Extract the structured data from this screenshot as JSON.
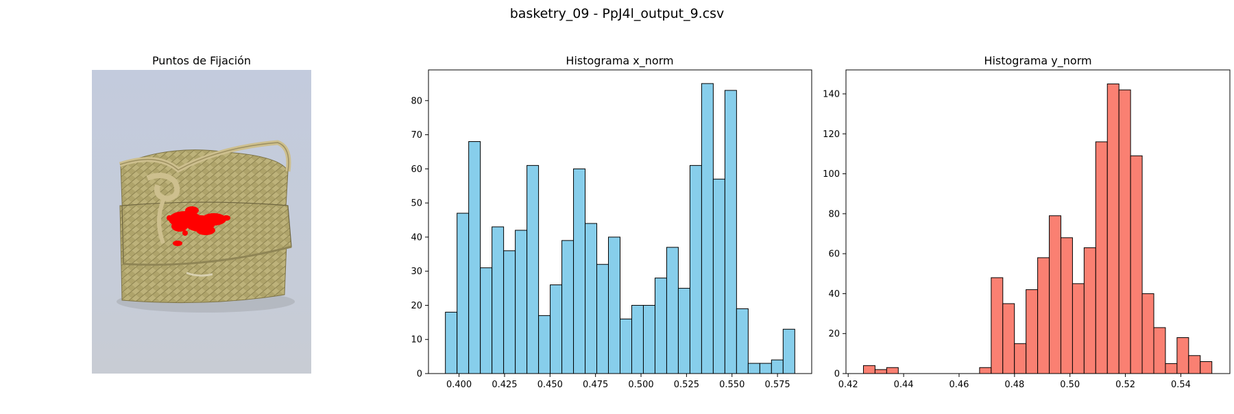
{
  "figure_title": "basketry_09 - PpJ4l_output_9.csv",
  "chart_data": [
    {
      "type": "image",
      "title": "Puntos de Fijación",
      "subject": "woven esparto basket bag with rope handle, red fixation point cluster on front flap",
      "colors": {
        "background": "#c3cbdd",
        "points": "#ff0000"
      }
    },
    {
      "type": "histogram",
      "title": "Histograma x_norm",
      "xlabel": "",
      "ylabel": "",
      "bin_start": 0.3925,
      "bin_width": 0.0064,
      "values": [
        18,
        47,
        68,
        31,
        43,
        36,
        42,
        61,
        17,
        26,
        39,
        60,
        44,
        32,
        40,
        16,
        20,
        20,
        28,
        37,
        25,
        61,
        85,
        57,
        83,
        19,
        3,
        3,
        4,
        13
      ],
      "xlim": [
        0.3832,
        0.5938
      ],
      "ylim": [
        0,
        89
      ],
      "xticks": [
        "0.400",
        "0.425",
        "0.450",
        "0.475",
        "0.500",
        "0.525",
        "0.550",
        "0.575"
      ],
      "yticks": [
        "0",
        "10",
        "20",
        "30",
        "40",
        "50",
        "60",
        "70",
        "80"
      ],
      "colors": {
        "fill": "#87ceeb",
        "edge": "#000000"
      },
      "grid": false,
      "legend": "none"
    },
    {
      "type": "histogram",
      "title": "Histograma y_norm",
      "xlabel": "",
      "ylabel": "",
      "bin_start": 0.4255,
      "bin_width": 0.00419,
      "values": [
        4,
        2,
        3,
        0,
        0,
        0,
        0,
        0,
        0,
        0,
        3,
        48,
        35,
        15,
        42,
        58,
        79,
        68,
        45,
        63,
        116,
        145,
        142,
        109,
        40,
        23,
        5,
        18,
        9,
        6
      ],
      "xlim": [
        0.4192,
        0.5577
      ],
      "ylim": [
        0,
        152
      ],
      "xticks": [
        "0.42",
        "0.44",
        "0.46",
        "0.48",
        "0.50",
        "0.52",
        "0.54"
      ],
      "yticks": [
        "0",
        "20",
        "40",
        "60",
        "80",
        "100",
        "120",
        "140"
      ],
      "colors": {
        "fill": "#fa8072",
        "edge": "#000000"
      },
      "grid": false,
      "legend": "none"
    }
  ]
}
